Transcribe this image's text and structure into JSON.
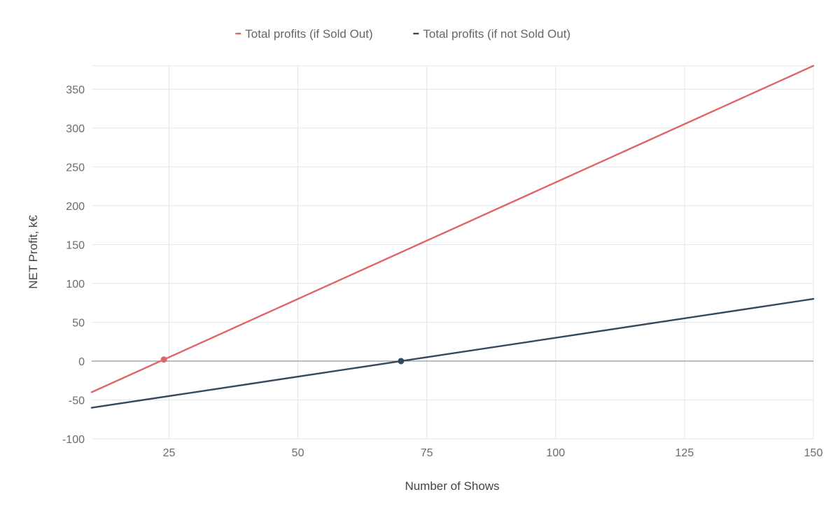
{
  "chart_data": {
    "type": "line",
    "title": "",
    "xlabel": "Number of Shows",
    "ylabel": "NET Profit, k€",
    "xlim": [
      10,
      150
    ],
    "ylim": [
      -100,
      380
    ],
    "x_ticks": [
      25,
      50,
      75,
      100,
      125,
      150
    ],
    "y_ticks": [
      -100,
      -50,
      0,
      50,
      100,
      150,
      200,
      250,
      300,
      350
    ],
    "grid": true,
    "legend_position": "top-center",
    "series": [
      {
        "name": "Total profits (if Sold Out)",
        "color": "#e06666",
        "x": [
          10,
          150
        ],
        "y": [
          -40,
          380
        ],
        "marker": {
          "x": 24,
          "y": 2
        }
      },
      {
        "name": "Total profits (if not Sold Out)",
        "color": "#34495e",
        "x": [
          10,
          150
        ],
        "y": [
          -60,
          80
        ],
        "marker": {
          "x": 70,
          "y": 0
        }
      }
    ]
  }
}
